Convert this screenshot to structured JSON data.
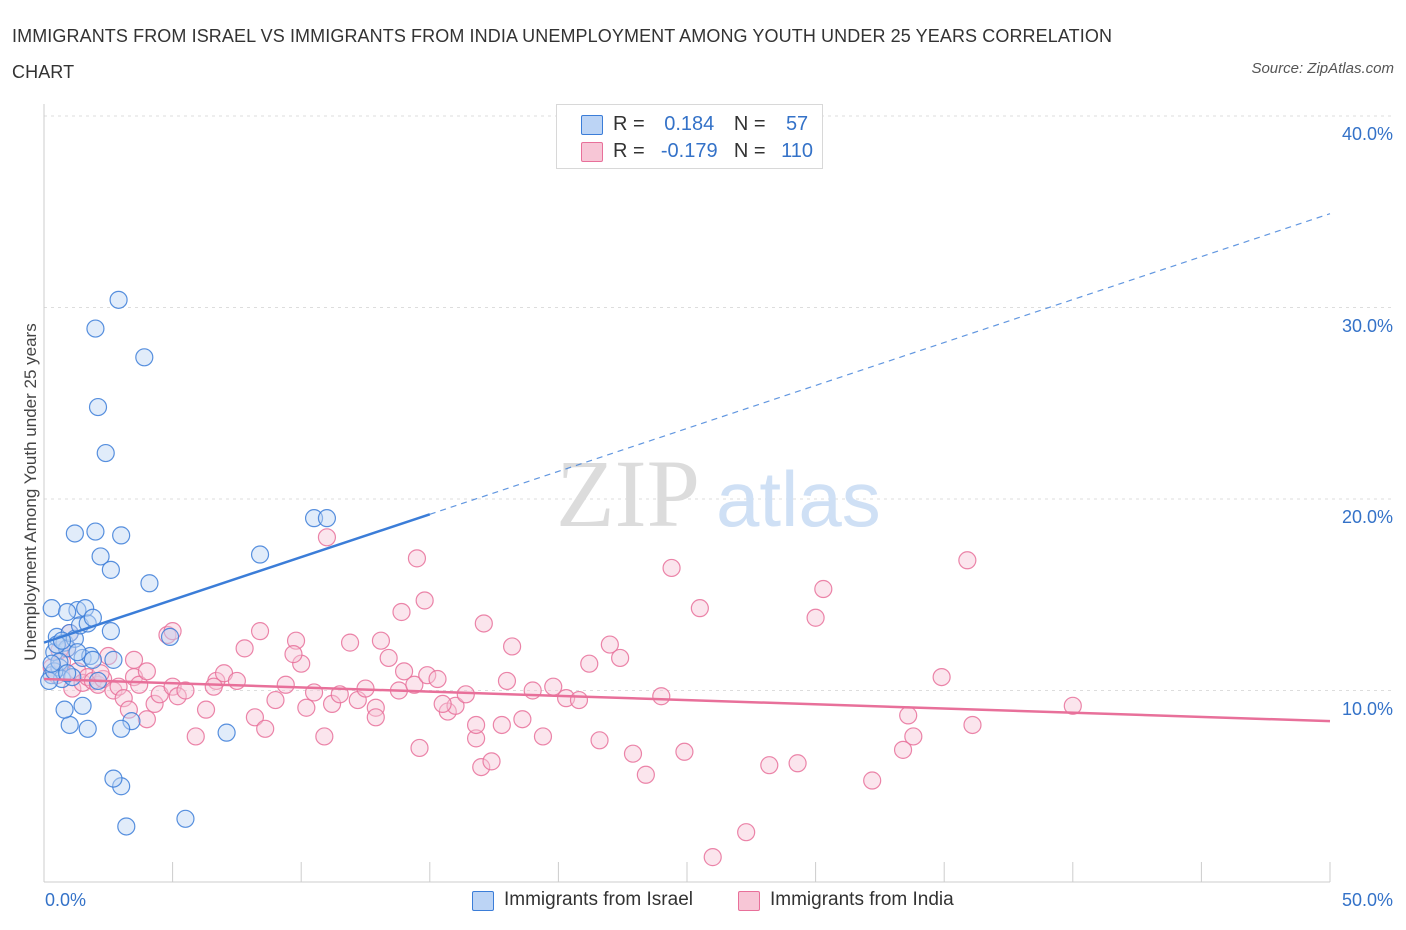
{
  "header": {
    "title": "IMMIGRANTS FROM ISRAEL VS IMMIGRANTS FROM INDIA UNEMPLOYMENT AMONG YOUTH UNDER 25 YEARS CORRELATION CHART",
    "source": "Source: ZipAtlas.com"
  },
  "watermark": {
    "zip": "ZIP",
    "atlas": "atlas"
  },
  "legend": {
    "israel": {
      "r_label": "R =",
      "r_value": "0.184",
      "n_label": "N =",
      "n_value": "57"
    },
    "india": {
      "r_label": "R =",
      "r_value": "-0.179",
      "n_label": "N =",
      "n_value": "110"
    }
  },
  "bottom_legend": {
    "israel": "Immigrants from Israel",
    "india": "Immigrants from India"
  },
  "chart_data": {
    "type": "scatter",
    "ylabel": "Unemployment Among Youth under 25 years",
    "xlim": [
      0,
      50
    ],
    "ylim": [
      0,
      40
    ],
    "x_tick_labels": {
      "min": "0.0%",
      "max": "50.0%"
    },
    "y_tick_labels": [
      "10.0%",
      "20.0%",
      "30.0%",
      "40.0%"
    ],
    "y_ticks": [
      10,
      20,
      30,
      40
    ],
    "colors": {
      "israel": "#3b7dd8",
      "india": "#e8709a",
      "israel_fill": "#bcd4f5",
      "india_fill": "#f7c6d6"
    },
    "series": [
      {
        "name": "Immigrants from Israel",
        "trend": {
          "x0": 0,
          "y0": 12.5,
          "x1": 15,
          "y1": 19.2,
          "x_end_dashed": 50,
          "y_end_dashed": 34.9
        },
        "points": [
          [
            0.3,
            10.8
          ],
          [
            0.4,
            12.0
          ],
          [
            0.5,
            12.8
          ],
          [
            0.6,
            11.2
          ],
          [
            0.7,
            10.6
          ],
          [
            0.8,
            12.5
          ],
          [
            0.9,
            12.2
          ],
          [
            1.0,
            13.0
          ],
          [
            1.1,
            10.7
          ],
          [
            1.2,
            12.7
          ],
          [
            1.3,
            14.2
          ],
          [
            1.4,
            13.4
          ],
          [
            1.5,
            11.7
          ],
          [
            1.6,
            14.3
          ],
          [
            1.7,
            13.5
          ],
          [
            1.8,
            11.8
          ],
          [
            0.3,
            14.3
          ],
          [
            0.5,
            12.4
          ],
          [
            0.9,
            14.1
          ],
          [
            1.9,
            13.8
          ],
          [
            2.0,
            28.9
          ],
          [
            2.1,
            24.8
          ],
          [
            2.2,
            17.0
          ],
          [
            2.4,
            22.4
          ],
          [
            2.6,
            16.3
          ],
          [
            2.7,
            11.6
          ],
          [
            2.9,
            30.4
          ],
          [
            3.0,
            18.1
          ],
          [
            3.4,
            8.4
          ],
          [
            3.9,
            27.4
          ],
          [
            4.1,
            15.6
          ],
          [
            4.9,
            12.8
          ],
          [
            5.5,
            3.3
          ],
          [
            7.1,
            7.8
          ],
          [
            8.4,
            17.1
          ],
          [
            10.5,
            19.0
          ],
          [
            11.0,
            19.0
          ],
          [
            1.2,
            18.2
          ],
          [
            2.0,
            18.3
          ],
          [
            3.0,
            8.0
          ],
          [
            3.0,
            5.0
          ],
          [
            3.2,
            2.9
          ],
          [
            2.7,
            5.4
          ],
          [
            1.0,
            8.2
          ],
          [
            1.7,
            8.0
          ],
          [
            0.8,
            9.0
          ],
          [
            1.5,
            9.2
          ],
          [
            2.1,
            10.5
          ],
          [
            2.6,
            13.1
          ],
          [
            0.2,
            10.5
          ],
          [
            0.4,
            11.0
          ],
          [
            0.6,
            11.5
          ],
          [
            0.9,
            10.9
          ],
          [
            1.3,
            12.0
          ],
          [
            1.9,
            11.6
          ],
          [
            0.3,
            11.4
          ],
          [
            0.7,
            12.6
          ]
        ]
      },
      {
        "name": "Immigrants from India",
        "trend": {
          "x0": 0,
          "y0": 10.6,
          "x1": 50,
          "y1": 8.4
        },
        "points": [
          [
            0.3,
            11.2
          ],
          [
            0.5,
            10.8
          ],
          [
            0.7,
            11.5
          ],
          [
            0.9,
            12.2
          ],
          [
            1.1,
            10.1
          ],
          [
            1.3,
            11.0
          ],
          [
            1.5,
            10.4
          ],
          [
            1.7,
            10.7
          ],
          [
            1.9,
            10.5
          ],
          [
            2.1,
            10.3
          ],
          [
            2.3,
            10.6
          ],
          [
            2.5,
            11.8
          ],
          [
            2.7,
            10.0
          ],
          [
            2.9,
            10.2
          ],
          [
            3.1,
            9.6
          ],
          [
            3.3,
            9.0
          ],
          [
            3.5,
            10.7
          ],
          [
            3.7,
            10.3
          ],
          [
            4.0,
            11.0
          ],
          [
            4.3,
            9.3
          ],
          [
            4.5,
            9.8
          ],
          [
            4.8,
            12.9
          ],
          [
            5.0,
            10.2
          ],
          [
            5.2,
            9.7
          ],
          [
            5.5,
            10.0
          ],
          [
            5.9,
            7.6
          ],
          [
            6.3,
            9.0
          ],
          [
            6.7,
            10.5
          ],
          [
            7.0,
            10.9
          ],
          [
            7.5,
            10.5
          ],
          [
            7.8,
            12.2
          ],
          [
            8.2,
            8.6
          ],
          [
            8.6,
            8.0
          ],
          [
            9.0,
            9.5
          ],
          [
            9.4,
            10.3
          ],
          [
            9.8,
            12.6
          ],
          [
            10.0,
            11.4
          ],
          [
            10.2,
            9.1
          ],
          [
            10.5,
            9.9
          ],
          [
            10.9,
            7.6
          ],
          [
            11.2,
            9.3
          ],
          [
            11.5,
            9.8
          ],
          [
            11.9,
            12.5
          ],
          [
            12.2,
            9.5
          ],
          [
            12.5,
            10.1
          ],
          [
            12.9,
            9.1
          ],
          [
            13.1,
            12.6
          ],
          [
            13.4,
            11.7
          ],
          [
            13.8,
            10.0
          ],
          [
            14.0,
            11.0
          ],
          [
            14.4,
            10.3
          ],
          [
            14.6,
            7.0
          ],
          [
            14.9,
            10.8
          ],
          [
            15.3,
            10.6
          ],
          [
            15.7,
            8.9
          ],
          [
            16.0,
            9.2
          ],
          [
            16.4,
            9.8
          ],
          [
            16.8,
            7.5
          ],
          [
            17.0,
            6.0
          ],
          [
            17.4,
            6.3
          ],
          [
            17.8,
            8.2
          ],
          [
            18.2,
            12.3
          ],
          [
            18.6,
            8.5
          ],
          [
            19.0,
            10.0
          ],
          [
            19.4,
            7.6
          ],
          [
            19.8,
            10.2
          ],
          [
            20.3,
            9.6
          ],
          [
            20.8,
            9.5
          ],
          [
            21.2,
            11.4
          ],
          [
            21.6,
            7.4
          ],
          [
            22.0,
            12.4
          ],
          [
            22.4,
            11.7
          ],
          [
            22.9,
            6.7
          ],
          [
            23.4,
            5.6
          ],
          [
            24.0,
            9.7
          ],
          [
            24.4,
            16.4
          ],
          [
            24.9,
            6.8
          ],
          [
            25.5,
            14.3
          ],
          [
            26.0,
            1.3
          ],
          [
            27.3,
            2.6
          ],
          [
            28.2,
            6.1
          ],
          [
            29.3,
            6.2
          ],
          [
            30.0,
            13.8
          ],
          [
            30.3,
            15.3
          ],
          [
            32.2,
            5.3
          ],
          [
            33.4,
            6.9
          ],
          [
            33.6,
            8.7
          ],
          [
            33.8,
            7.6
          ],
          [
            34.9,
            10.7
          ],
          [
            35.9,
            16.8
          ],
          [
            36.1,
            8.2
          ],
          [
            40.0,
            9.2
          ],
          [
            11.0,
            18.0
          ],
          [
            14.5,
            16.9
          ],
          [
            13.9,
            14.1
          ],
          [
            14.8,
            14.7
          ],
          [
            17.1,
            13.5
          ],
          [
            6.6,
            10.2
          ],
          [
            5.0,
            13.1
          ],
          [
            3.5,
            11.6
          ],
          [
            1.0,
            13.0
          ],
          [
            0.6,
            12.1
          ],
          [
            2.2,
            10.9
          ],
          [
            8.4,
            13.1
          ],
          [
            9.7,
            11.9
          ],
          [
            12.9,
            8.6
          ],
          [
            15.5,
            9.3
          ],
          [
            16.8,
            8.2
          ],
          [
            18.0,
            10.5
          ],
          [
            4.0,
            8.5
          ]
        ]
      }
    ]
  }
}
